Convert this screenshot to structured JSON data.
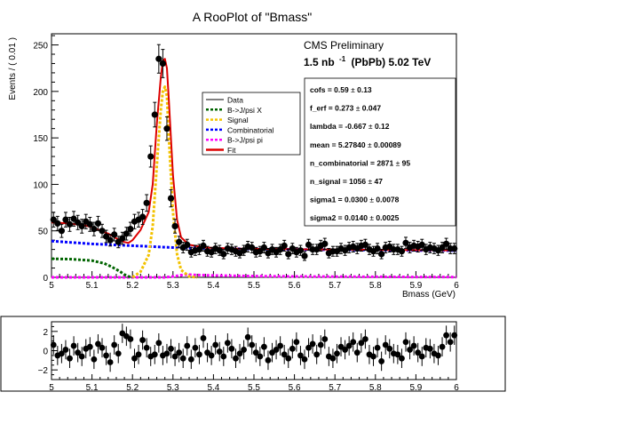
{
  "chart_data": [
    {
      "type": "scatter",
      "title": "A RooPlot of \"Bmass\"",
      "xlabel": "Bmass (GeV)",
      "ylabel": "Events / ( 0.01 )",
      "xlim": [
        5,
        6
      ],
      "ylim": [
        0,
        262
      ],
      "x_ticks": [
        "5",
        "5.1",
        "5.2",
        "5.3",
        "5.4",
        "5.5",
        "5.6",
        "5.7",
        "5.8",
        "5.9",
        "6"
      ],
      "y_ticks": [
        "0",
        "50",
        "100",
        "150",
        "200",
        "250"
      ],
      "text_annotations": [
        "CMS Preliminary",
        "1.5 nb",
        "-1",
        "(PbPb) 5.02 TeV"
      ],
      "legend_position": "center",
      "legend": [
        {
          "label": "Data",
          "color": "#000000",
          "style": "solid"
        },
        {
          "label": "B->J/psi X",
          "color": "#006400",
          "style": "dotted"
        },
        {
          "label": "Signal",
          "color": "#f2c200",
          "style": "dotted"
        },
        {
          "label": "Combinatorial",
          "color": "#0000ff",
          "style": "dotted"
        },
        {
          "label": "B->J/psi pi",
          "color": "#ff00ff",
          "style": "dotted"
        },
        {
          "label": "Fit",
          "color": "#dd0000",
          "style": "solid"
        }
      ],
      "params": [
        {
          "name": "cofs =",
          "value": "0.59",
          "error": "0.13"
        },
        {
          "name": "f_erf =",
          "value": "0.273",
          "error": "0.047"
        },
        {
          "name": "lambda =",
          "value": "-0.667",
          "error": "0.12"
        },
        {
          "name": "mean =",
          "value": "5.27840",
          "error": "0.00089"
        },
        {
          "name": "n_combinatorial =",
          "value": "2871",
          "error": "95"
        },
        {
          "name": "n_signal =",
          "value": "1056",
          "error": "47"
        },
        {
          "name": "sigma1 =",
          "value": "0.0300",
          "error": "0.0078"
        },
        {
          "name": "sigma2 =",
          "value": "0.0140",
          "error": "0.0025"
        }
      ],
      "pm_symbol": "±",
      "series": [
        {
          "name": "Data",
          "kind": "points",
          "x": [
            5.005,
            5.015,
            5.025,
            5.035,
            5.045,
            5.055,
            5.065,
            5.075,
            5.085,
            5.095,
            5.105,
            5.115,
            5.125,
            5.135,
            5.145,
            5.155,
            5.165,
            5.175,
            5.185,
            5.195,
            5.205,
            5.215,
            5.225,
            5.235,
            5.245,
            5.255,
            5.265,
            5.275,
            5.285,
            5.295,
            5.305,
            5.315,
            5.325,
            5.335,
            5.345,
            5.355,
            5.365,
            5.375,
            5.385,
            5.395,
            5.405,
            5.415,
            5.425,
            5.435,
            5.445,
            5.455,
            5.465,
            5.475,
            5.485,
            5.495,
            5.505,
            5.515,
            5.525,
            5.535,
            5.545,
            5.555,
            5.565,
            5.575,
            5.585,
            5.595,
            5.605,
            5.615,
            5.625,
            5.635,
            5.645,
            5.655,
            5.665,
            5.675,
            5.685,
            5.695,
            5.705,
            5.715,
            5.725,
            5.735,
            5.745,
            5.755,
            5.765,
            5.775,
            5.785,
            5.795,
            5.805,
            5.815,
            5.825,
            5.835,
            5.845,
            5.855,
            5.865,
            5.875,
            5.885,
            5.895,
            5.905,
            5.915,
            5.925,
            5.935,
            5.945,
            5.955,
            5.965,
            5.975,
            5.985,
            5.995
          ],
          "y": [
            62,
            58,
            50,
            62,
            57,
            63,
            59,
            55,
            60,
            57,
            52,
            58,
            50,
            44,
            40,
            46,
            38,
            42,
            47,
            52,
            60,
            62,
            65,
            80,
            130,
            175,
            235,
            230,
            160,
            85,
            55,
            38,
            32,
            35,
            27,
            29,
            30,
            34,
            28,
            27,
            31,
            29,
            25,
            31,
            30,
            28,
            26,
            29,
            33,
            32,
            27,
            28,
            32,
            26,
            30,
            27,
            30,
            34,
            25,
            31,
            27,
            29,
            23,
            35,
            30,
            30,
            34,
            36,
            26,
            28,
            28,
            31,
            29,
            32,
            33,
            31,
            34,
            35,
            30,
            28,
            31,
            25,
            32,
            33,
            30,
            30,
            28,
            37,
            32,
            34,
            33,
            35,
            30,
            32,
            31,
            29,
            32,
            36,
            31,
            31
          ],
          "error_type": "poisson"
        },
        {
          "name": "Fit",
          "kind": "curve",
          "color": "#dd0000",
          "x": [
            5.0,
            5.04,
            5.08,
            5.1,
            5.14,
            5.16,
            5.18,
            5.19,
            5.2,
            5.22,
            5.24,
            5.25,
            5.26,
            5.27,
            5.275,
            5.28,
            5.285,
            5.29,
            5.3,
            5.31,
            5.32,
            5.34,
            5.38,
            5.45,
            5.55,
            5.65,
            5.75,
            5.85,
            5.95,
            6.0
          ],
          "y": [
            59,
            58,
            56,
            54,
            47,
            42,
            38,
            37,
            40,
            51,
            70,
            100,
            165,
            215,
            233,
            235,
            225,
            190,
            110,
            62,
            43,
            35,
            32,
            31,
            30.5,
            30,
            29.7,
            29.4,
            29.2,
            29
          ]
        },
        {
          "name": "Signal",
          "kind": "curve",
          "color": "#f2c200",
          "x": [
            5.2,
            5.22,
            5.24,
            5.25,
            5.26,
            5.27,
            5.275,
            5.28,
            5.285,
            5.29,
            5.3,
            5.31,
            5.32,
            5.34,
            5.36
          ],
          "y": [
            0,
            6,
            24,
            55,
            120,
            180,
            200,
            205,
            195,
            150,
            70,
            25,
            8,
            1,
            0
          ]
        },
        {
          "name": "Combinatorial",
          "kind": "curve",
          "color": "#0000ff",
          "x": [
            5.0,
            5.1,
            5.2,
            5.3,
            5.4,
            5.5,
            5.6,
            5.7,
            5.8,
            5.9,
            6.0
          ],
          "y": [
            39,
            36,
            34,
            32,
            31,
            30.5,
            30,
            29.6,
            29.3,
            29,
            28.8
          ]
        },
        {
          "name": "B->J/psi X",
          "kind": "curve",
          "color": "#006400",
          "x": [
            5.0,
            5.05,
            5.1,
            5.13,
            5.15,
            5.17,
            5.18,
            5.19,
            5.2
          ],
          "y": [
            20,
            19.5,
            18,
            15,
            11,
            6,
            3,
            1,
            0
          ]
        },
        {
          "name": "B->J/psi pi",
          "kind": "curve",
          "color": "#ff00ff",
          "x": [
            5.0,
            5.28,
            5.3,
            5.33,
            5.36,
            5.4,
            5.45,
            5.5,
            5.6,
            5.7,
            5.8,
            5.9,
            6.0
          ],
          "y": [
            0,
            0,
            1,
            3,
            2.5,
            2,
            1.6,
            1.3,
            1,
            0.8,
            0.6,
            0.4,
            0.3
          ]
        }
      ]
    },
    {
      "type": "scatter",
      "title": "",
      "xlabel": "",
      "ylabel": "",
      "xlim": [
        5,
        6
      ],
      "ylim": [
        -3,
        3
      ],
      "x_ticks": [
        "5",
        "5.1",
        "5.2",
        "5.3",
        "5.4",
        "5.5",
        "5.6",
        "5.7",
        "5.8",
        "5.9",
        "6"
      ],
      "y_ticks": [
        "−2",
        "0",
        "2"
      ],
      "series": [
        {
          "name": "",
          "kind": "points",
          "x": [
            5.005,
            5.015,
            5.025,
            5.035,
            5.045,
            5.055,
            5.065,
            5.075,
            5.085,
            5.095,
            5.105,
            5.115,
            5.125,
            5.135,
            5.145,
            5.155,
            5.165,
            5.175,
            5.185,
            5.195,
            5.205,
            5.215,
            5.225,
            5.235,
            5.245,
            5.255,
            5.265,
            5.275,
            5.285,
            5.295,
            5.305,
            5.315,
            5.325,
            5.335,
            5.345,
            5.355,
            5.365,
            5.375,
            5.385,
            5.395,
            5.405,
            5.415,
            5.425,
            5.435,
            5.445,
            5.455,
            5.465,
            5.475,
            5.485,
            5.495,
            5.505,
            5.515,
            5.525,
            5.535,
            5.545,
            5.555,
            5.565,
            5.575,
            5.585,
            5.595,
            5.605,
            5.615,
            5.625,
            5.635,
            5.645,
            5.655,
            5.665,
            5.675,
            5.685,
            5.695,
            5.705,
            5.715,
            5.725,
            5.735,
            5.745,
            5.755,
            5.765,
            5.775,
            5.785,
            5.795,
            5.805,
            5.815,
            5.825,
            5.835,
            5.845,
            5.855,
            5.865,
            5.875,
            5.885,
            5.895,
            5.905,
            5.915,
            5.925,
            5.935,
            5.945,
            5.955,
            5.965,
            5.975,
            5.985,
            5.995
          ],
          "y": [
            0.6,
            -0.5,
            -0.3,
            0.1,
            -0.8,
            0.5,
            -0.2,
            -0.6,
            0.2,
            0.4,
            -0.9,
            0.7,
            0.3,
            -0.5,
            -1.2,
            0.6,
            -0.3,
            1.8,
            1.5,
            1.2,
            -0.8,
            -0.4,
            1.1,
            0.3,
            -0.6,
            -0.4,
            0.8,
            -0.5,
            -0.3,
            0.2,
            -0.6,
            -0.2,
            -0.8,
            0.5,
            -0.9,
            0.3,
            -0.4,
            1.3,
            -0.2,
            -0.5,
            0.6,
            -0.1,
            -0.6,
            0.8,
            0.2,
            -0.8,
            -0.3,
            0.1,
            1.4,
            0.6,
            -0.2,
            -0.6,
            0.4,
            -1.0,
            -0.2,
            0.1,
            0.5,
            -0.4,
            -0.8,
            0.2,
            0.9,
            -0.5,
            -0.9,
            0.3,
            0.7,
            -0.4,
            0.6,
            1.2,
            -0.6,
            -0.8,
            -0.3,
            0.4,
            0.1,
            0.5,
            0.9,
            -0.2,
            0.8,
            1.2,
            -0.4,
            -0.6,
            0.3,
            -1.1,
            0.6,
            0.2,
            -0.3,
            -0.4,
            -0.8,
            0.9,
            0.1,
            0.5,
            -0.2,
            -0.6,
            0.3,
            0.2,
            -0.3,
            -0.5,
            0.4,
            1.6,
            0.9,
            1.6
          ]
        }
      ]
    }
  ]
}
